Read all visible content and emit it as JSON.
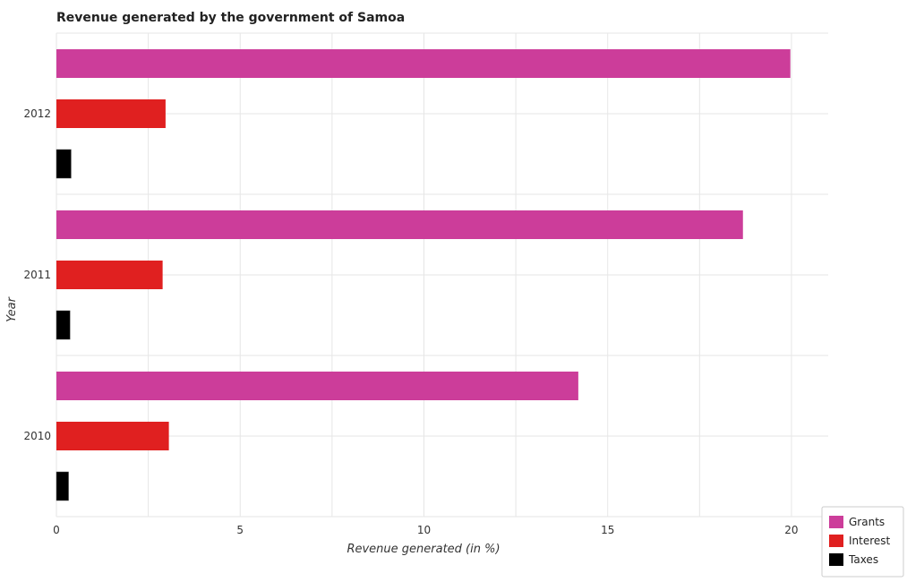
{
  "chart_data": {
    "type": "bar",
    "orientation": "horizontal",
    "title": "Revenue generated by the government of Samoa",
    "xlabel": "Revenue generated (in %)",
    "ylabel": "Year",
    "categories": [
      "2010",
      "2011",
      "2012"
    ],
    "xlim": [
      0,
      21
    ],
    "xticks": [
      0,
      5,
      10,
      15,
      20
    ],
    "grid": true,
    "legend_position": "bottom-right",
    "series": [
      {
        "name": "Grants",
        "color": "#cc3d9a",
        "values": [
          14.2,
          18.68,
          19.97
        ]
      },
      {
        "name": "Interest",
        "color": "#e02020",
        "values": [
          3.06,
          2.89,
          2.97
        ]
      },
      {
        "name": "Taxes",
        "color": "#000000",
        "values": [
          0.33,
          0.37,
          0.4
        ]
      }
    ]
  }
}
